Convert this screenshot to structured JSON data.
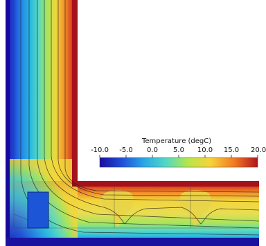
{
  "colorbar": {
    "title": "Temperature (degC)",
    "tick_labels": [
      "-10.0",
      "-5.0",
      "0.0",
      "5.0",
      "10.0",
      "15.0",
      "20.0"
    ],
    "range": [
      -10,
      20
    ],
    "colormap": [
      "#1a0d9e",
      "#1f4fd8",
      "#2aa7e6",
      "#52d8c4",
      "#b6e64a",
      "#f7d33a",
      "#f27b23",
      "#b0141c"
    ]
  }
}
